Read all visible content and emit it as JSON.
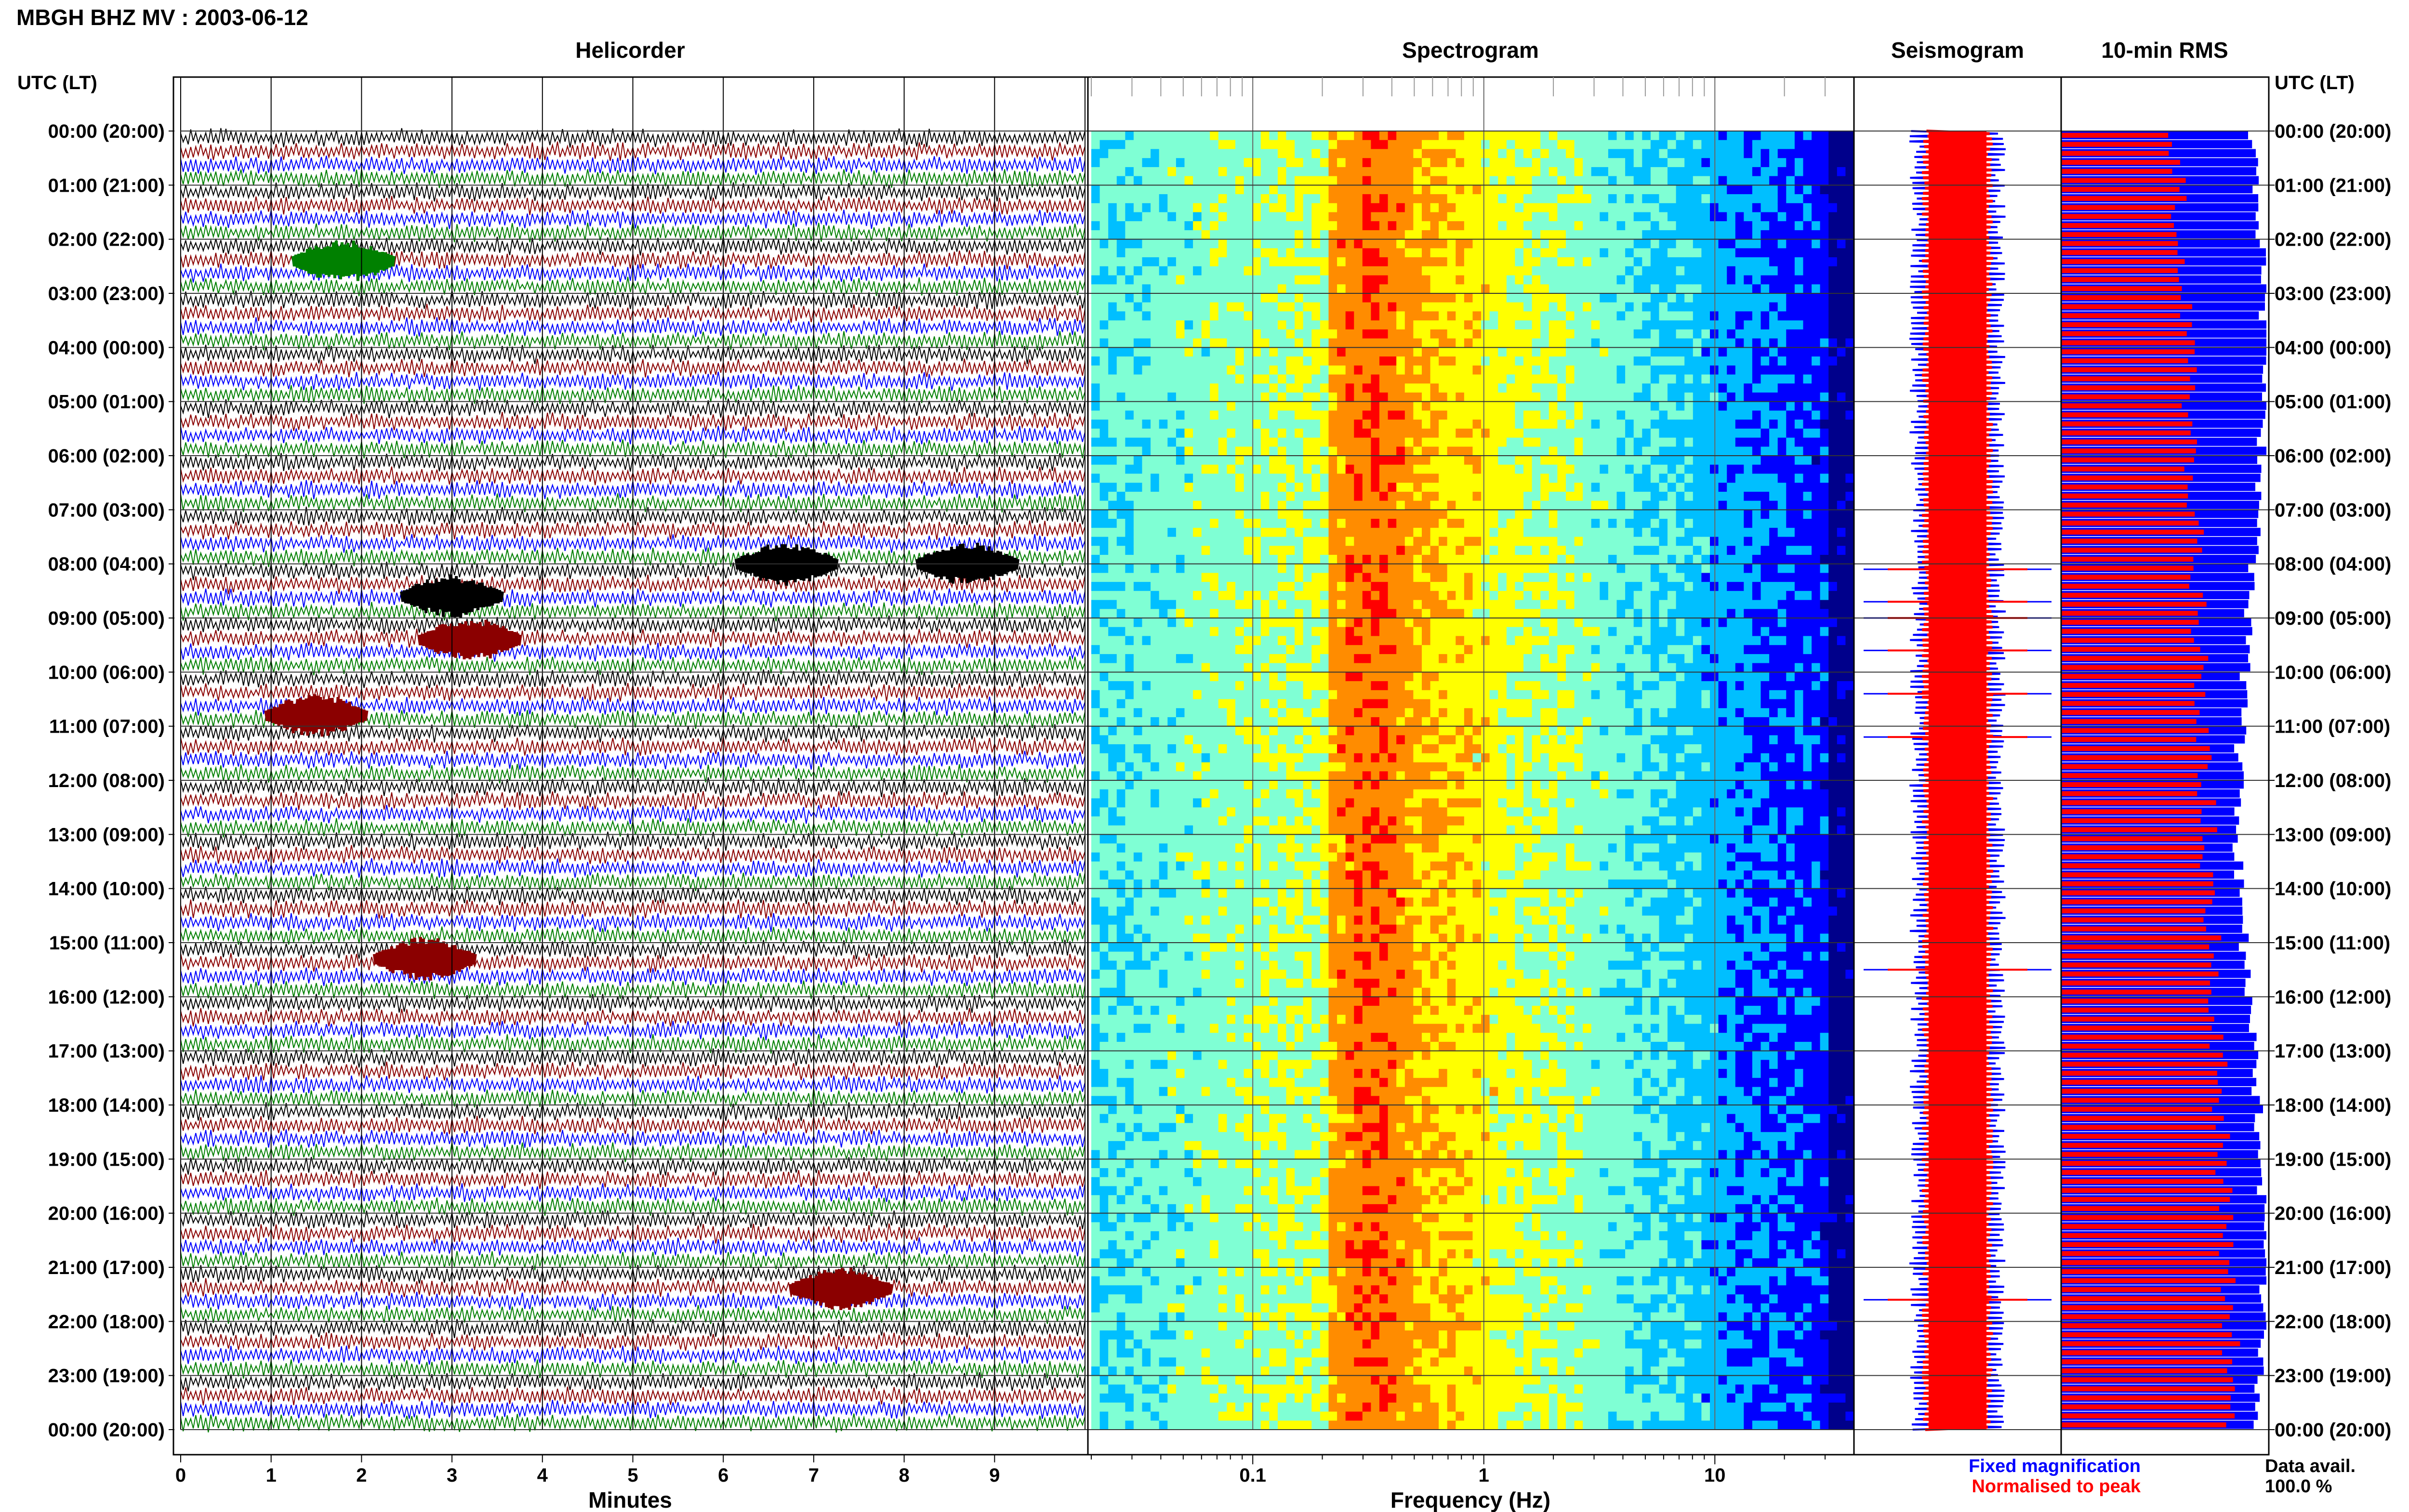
{
  "header": {
    "title": "MBGH BHZ MV : 2003-06-12"
  },
  "panels": {
    "helicorder": "Helicorder",
    "spectrogram": "Spectrogram",
    "seismogram": "Seismogram",
    "rms": "10-min RMS"
  },
  "axis": {
    "time_label_left": "UTC (LT)",
    "time_label_right": "UTC (LT)",
    "hour_labels": [
      "00:00 (20:00)",
      "01:00 (21:00)",
      "02:00 (22:00)",
      "03:00 (23:00)",
      "04:00 (00:00)",
      "05:00 (01:00)",
      "06:00 (02:00)",
      "07:00 (03:00)",
      "08:00 (04:00)",
      "09:00 (05:00)",
      "10:00 (06:00)",
      "11:00 (07:00)",
      "12:00 (08:00)",
      "13:00 (09:00)",
      "14:00 (10:00)",
      "15:00 (11:00)",
      "16:00 (12:00)",
      "17:00 (13:00)",
      "18:00 (14:00)",
      "19:00 (15:00)",
      "20:00 (16:00)",
      "21:00 (17:00)",
      "22:00 (18:00)",
      "23:00 (19:00)",
      "00:00 (20:00)"
    ],
    "minutes_label": "Minutes",
    "minute_ticks": [
      "0",
      "1",
      "2",
      "3",
      "4",
      "5",
      "6",
      "7",
      "8",
      "9"
    ],
    "frequency_label": "Frequency (Hz)",
    "frequency_ticks": [
      "0.1",
      "1",
      "10"
    ]
  },
  "legend": {
    "fixed": "Fixed magnification",
    "normalised": "Normalised to peak",
    "fixed_color": "#0000ff",
    "normalised_color": "#ff0000"
  },
  "data_avail": {
    "label": "Data avail.",
    "value": "100.0 %"
  },
  "chart_data": {
    "type": "heatmap",
    "helicorder": {
      "minutes_range": [
        0,
        10
      ],
      "hours": 24,
      "trace_colors": [
        "#000000",
        "#8b0000",
        "#0000ff",
        "#008000"
      ],
      "events": [
        {
          "hour": 2.4,
          "minute": 1.8,
          "color": "#008000"
        },
        {
          "hour": 8.0,
          "minute": 6.7,
          "color": "#000000"
        },
        {
          "hour": 8.0,
          "minute": 8.7,
          "color": "#000000"
        },
        {
          "hour": 8.6,
          "minute": 3.0,
          "color": "#000000"
        },
        {
          "hour": 9.4,
          "minute": 3.2,
          "color": "#8b0000"
        },
        {
          "hour": 10.8,
          "minute": 1.5,
          "color": "#8b0000"
        },
        {
          "hour": 15.3,
          "minute": 2.7,
          "color": "#8b0000"
        },
        {
          "hour": 21.4,
          "minute": 7.3,
          "color": "#8b0000"
        }
      ]
    },
    "spectrogram": {
      "x_scale": "log",
      "xlim": [
        0.02,
        40
      ],
      "peak_band_hz": [
        0.22,
        0.5
      ],
      "colormap": [
        "#00008b",
        "#0000ff",
        "#00bfff",
        "#7fffd4",
        "#ffff00",
        "#ff8c00",
        "#ff0000"
      ]
    },
    "seismogram": {
      "spikes_hours": [
        8.1,
        8.7,
        9.0,
        9.6,
        10.4,
        11.2,
        15.5,
        21.6
      ]
    },
    "rms": {
      "ylim_hours": [
        0,
        24
      ],
      "interval_minutes": 10
    }
  }
}
